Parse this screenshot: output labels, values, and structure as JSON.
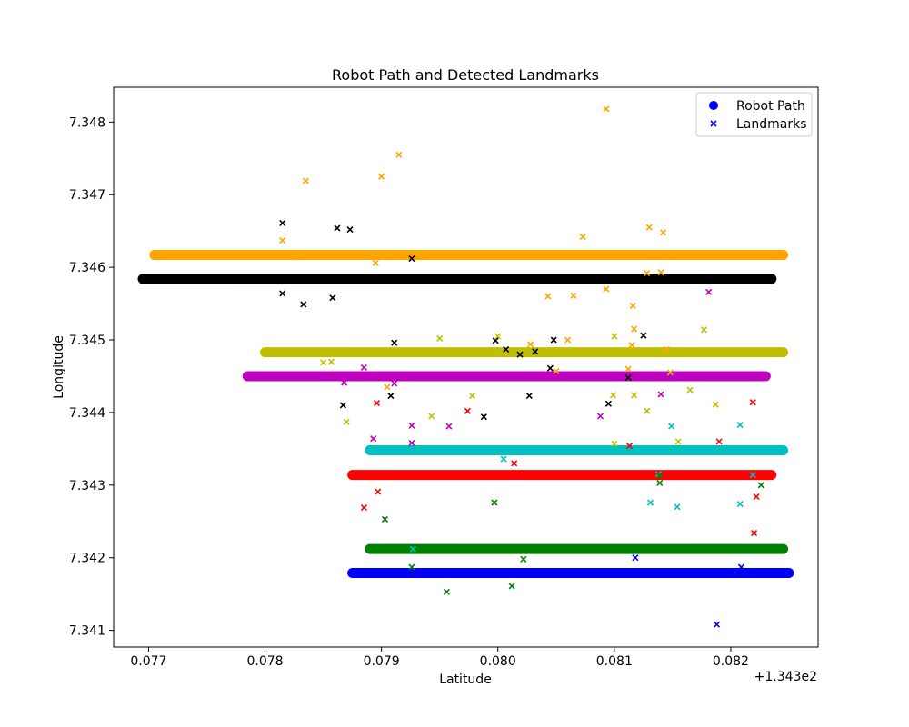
{
  "chart_data": {
    "type": "scatter",
    "title": "Robot Path and Detected Landmarks",
    "xlabel": "Latitude",
    "ylabel": "Longitude",
    "x_offset_label": "+1.343e2",
    "xlim": [
      0.0767,
      0.08275
    ],
    "ylim": [
      7.34077,
      7.34848
    ],
    "x_ticks": [
      {
        "value": 0.077,
        "label": "0.077"
      },
      {
        "value": 0.078,
        "label": "0.078"
      },
      {
        "value": 0.079,
        "label": "0.079"
      },
      {
        "value": 0.08,
        "label": "0.080"
      },
      {
        "value": 0.081,
        "label": "0.081"
      },
      {
        "value": 0.082,
        "label": "0.082"
      }
    ],
    "y_ticks": [
      {
        "value": 7.341,
        "label": "7.341"
      },
      {
        "value": 7.342,
        "label": "7.342"
      },
      {
        "value": 7.343,
        "label": "7.343"
      },
      {
        "value": 7.344,
        "label": "7.344"
      },
      {
        "value": 7.345,
        "label": "7.345"
      },
      {
        "value": 7.346,
        "label": "7.346"
      },
      {
        "value": 7.347,
        "label": "7.347"
      },
      {
        "value": 7.348,
        "label": "7.348"
      }
    ],
    "legend": {
      "placement": "top-right",
      "entries": [
        {
          "label": "Robot Path",
          "marker": "circle",
          "color": "#0000ff"
        },
        {
          "label": "Landmarks",
          "marker": "x",
          "color": "#0000ff"
        }
      ]
    },
    "paths": [
      {
        "color": "#ffa500",
        "x_start": 0.07705,
        "x_end": 0.08245,
        "y": 7.34617
      },
      {
        "color": "#000000",
        "x_start": 0.07695,
        "x_end": 0.08235,
        "y": 7.34584
      },
      {
        "color": "#bfbf00",
        "x_start": 0.078,
        "x_end": 0.08245,
        "y": 7.34483
      },
      {
        "color": "#bf00bf",
        "x_start": 0.07785,
        "x_end": 0.0823,
        "y": 7.3445
      },
      {
        "color": "#00bfbf",
        "x_start": 0.0789,
        "x_end": 0.08245,
        "y": 7.34348
      },
      {
        "color": "#ff0000",
        "x_start": 0.07875,
        "x_end": 0.08235,
        "y": 7.34314
      },
      {
        "color": "#008000",
        "x_start": 0.0789,
        "x_end": 0.08245,
        "y": 7.34212
      },
      {
        "color": "#0000ff",
        "x_start": 0.07875,
        "x_end": 0.0825,
        "y": 7.34179
      }
    ],
    "landmarks": [
      {
        "color": "#ffa500",
        "points": [
          [
            0.07815,
            7.34637
          ],
          [
            0.07825,
            7.34614
          ],
          [
            0.07835,
            7.34719
          ],
          [
            0.079,
            7.34725
          ],
          [
            0.07915,
            7.34755
          ],
          [
            0.07895,
            7.34606
          ],
          [
            0.08093,
            7.34818
          ],
          [
            0.08073,
            7.34642
          ],
          [
            0.0813,
            7.34655
          ],
          [
            0.08142,
            7.34648
          ],
          [
            0.08128,
            7.34592
          ],
          [
            0.0814,
            7.34593
          ],
          [
            0.08043,
            7.3456
          ],
          [
            0.08065,
            7.34561
          ],
          [
            0.08093,
            7.3457
          ],
          [
            0.08116,
            7.34547
          ],
          [
            0.08117,
            7.34515
          ],
          [
            0.08028,
            7.34494
          ],
          [
            0.0806,
            7.345
          ],
          [
            0.08115,
            7.34493
          ],
          [
            0.08112,
            7.3446
          ],
          [
            0.0805,
            7.34457
          ],
          [
            0.08145,
            7.34487
          ],
          [
            0.07905,
            7.34435
          ]
        ]
      },
      {
        "color": "#000000",
        "points": [
          [
            0.07815,
            7.34661
          ],
          [
            0.07862,
            7.34654
          ],
          [
            0.07873,
            7.34652
          ],
          [
            0.07926,
            7.34612
          ],
          [
            0.07815,
            7.34564
          ],
          [
            0.07833,
            7.34549
          ],
          [
            0.07858,
            7.34558
          ],
          [
            0.07911,
            7.34496
          ],
          [
            0.07998,
            7.34499
          ],
          [
            0.08007,
            7.34487
          ],
          [
            0.08019,
            7.3448
          ],
          [
            0.08032,
            7.34484
          ],
          [
            0.08048,
            7.345
          ],
          [
            0.08045,
            7.34461
          ],
          [
            0.08125,
            7.34506
          ],
          [
            0.08112,
            7.34448
          ],
          [
            0.08095,
            7.34412
          ],
          [
            0.07867,
            7.3441
          ],
          [
            0.07908,
            7.34423
          ],
          [
            0.08027,
            7.34423
          ],
          [
            0.07988,
            7.34394
          ]
        ]
      },
      {
        "color": "#bfbf00",
        "points": [
          [
            0.0795,
            7.34502
          ],
          [
            0.08,
            7.34505
          ],
          [
            0.0785,
            7.34469
          ],
          [
            0.07857,
            7.3447
          ],
          [
            0.0787,
            7.34387
          ],
          [
            0.07943,
            7.34395
          ],
          [
            0.07978,
            7.34423
          ],
          [
            0.08099,
            7.34424
          ],
          [
            0.08117,
            7.34424
          ],
          [
            0.08128,
            7.34402
          ],
          [
            0.08148,
            7.34455
          ],
          [
            0.08165,
            7.34431
          ],
          [
            0.08177,
            7.34514
          ],
          [
            0.08187,
            7.34411
          ],
          [
            0.081,
            7.34357
          ],
          [
            0.08155,
            7.3436
          ],
          [
            0.081,
            7.34505
          ]
        ]
      },
      {
        "color": "#bf00bf",
        "points": [
          [
            0.07885,
            7.34462
          ],
          [
            0.07868,
            7.34441
          ],
          [
            0.07911,
            7.3444
          ],
          [
            0.07926,
            7.34382
          ],
          [
            0.07893,
            7.34364
          ],
          [
            0.07926,
            7.34358
          ],
          [
            0.07958,
            7.34381
          ],
          [
            0.08088,
            7.34395
          ],
          [
            0.0814,
            7.34425
          ],
          [
            0.08181,
            7.34566
          ]
        ]
      },
      {
        "color": "#00bfbf",
        "points": [
          [
            0.07927,
            7.34212
          ],
          [
            0.08005,
            7.34336
          ],
          [
            0.08138,
            7.34315
          ],
          [
            0.08149,
            7.34381
          ],
          [
            0.08131,
            7.34276
          ],
          [
            0.08154,
            7.3427
          ],
          [
            0.08208,
            7.34274
          ],
          [
            0.08208,
            7.34383
          ],
          [
            0.08219,
            7.34314
          ]
        ]
      },
      {
        "color": "#ff0000",
        "points": [
          [
            0.07896,
            7.34413
          ],
          [
            0.07974,
            7.34402
          ],
          [
            0.08014,
            7.3433
          ],
          [
            0.07885,
            7.34269
          ],
          [
            0.07897,
            7.34291
          ],
          [
            0.0819,
            7.3436
          ],
          [
            0.08219,
            7.34414
          ],
          [
            0.08222,
            7.34284
          ],
          [
            0.0822,
            7.34234
          ],
          [
            0.08113,
            7.34354
          ]
        ]
      },
      {
        "color": "#008000",
        "points": [
          [
            0.07903,
            7.34253
          ],
          [
            0.07926,
            7.34187
          ],
          [
            0.07956,
            7.34153
          ],
          [
            0.07997,
            7.34276
          ],
          [
            0.08012,
            7.34161
          ],
          [
            0.08022,
            7.34198
          ],
          [
            0.08139,
            7.34303
          ],
          [
            0.08226,
            7.343
          ],
          [
            0.08139,
            7.34313
          ]
        ]
      },
      {
        "color": "#0000ff",
        "points": [
          [
            0.08118,
            7.342
          ],
          [
            0.08209,
            7.34187
          ],
          [
            0.08188,
            7.34108
          ]
        ]
      }
    ]
  }
}
